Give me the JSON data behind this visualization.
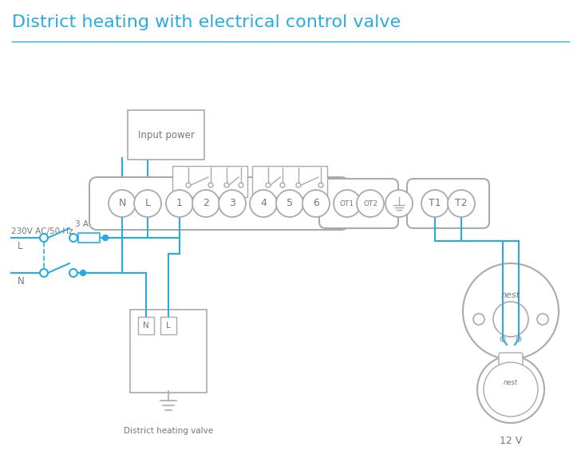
{
  "title": "District heating with electrical control valve",
  "title_color": "#29abe2",
  "title_fontsize": 16,
  "bg_color": "#ffffff",
  "wire_color": "#29abe2",
  "comp_color": "#aaaaaa",
  "text_color": "#777777",
  "dark_text": "#888888",
  "terminal_labels_main": [
    "N",
    "L",
    "1",
    "2",
    "3",
    "4",
    "5",
    "6"
  ],
  "terminal_labels_ot": [
    "OT1",
    "OT2"
  ],
  "terminal_labels_t": [
    "T1",
    "T2"
  ],
  "label_input_power": "Input power",
  "label_district": "District heating valve",
  "label_230v": "230V AC/50 Hz",
  "label_L": "L",
  "label_N": "N",
  "label_3A": "3 A",
  "label_nest_top": "nest",
  "label_nest_bot": "nest",
  "label_12v": "12 V",
  "figsize": [
    7.28,
    5.94
  ],
  "dpi": 100
}
